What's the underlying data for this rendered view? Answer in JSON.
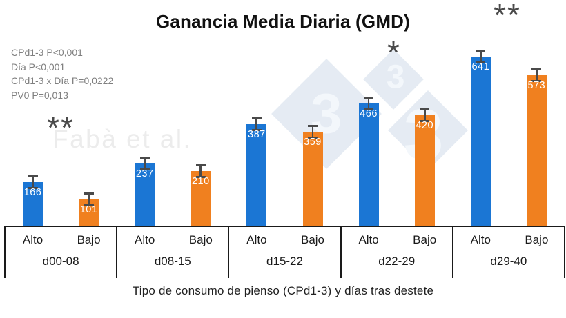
{
  "title": "Ganancia Media Diaria (GMD)",
  "stats_lines": [
    "CPd1-3 P<0,001",
    "Día P<0,001",
    "CPd1-3 x Día P=0,0222",
    "PV0 P=0,013"
  ],
  "watermark": {
    "author": "Fabà et al.",
    "logo_digits": [
      "3",
      "3",
      "3"
    ]
  },
  "chart_data": {
    "type": "bar",
    "title": "Ganancia Media Diaria (GMD)",
    "xlabel": "Tipo de consumo de pienso (CPd1-3) y días tras destete",
    "ylabel": "",
    "categories": [
      "d00-08",
      "d08-15",
      "d15-22",
      "d22-29",
      "d29-40"
    ],
    "subcategory_labels": [
      "Alto",
      "Bajo"
    ],
    "series": [
      {
        "name": "Alto",
        "color": "#1B76D4",
        "values": [
          166,
          237,
          387,
          466,
          641
        ]
      },
      {
        "name": "Bajo",
        "color": "#F0801F",
        "values": [
          101,
          210,
          359,
          420,
          573
        ]
      }
    ],
    "error_bars_shown": true,
    "significance_marks": [
      {
        "category": "d00-08",
        "label": "**"
      },
      {
        "category": "d22-29",
        "label": "*"
      },
      {
        "category": "d29-40",
        "label": "**"
      }
    ],
    "ylim": [
      0,
      700
    ],
    "grid": false,
    "legend": "none"
  },
  "colors": {
    "alto_bar": "#1B76D4",
    "bajo_bar": "#F0801F",
    "axis_line": "#1a1a1a",
    "stats_text": "#7f7f7f",
    "asterisk": "#4a4a4a",
    "value_label": "#ffffff",
    "watermark_diamond": "#E5EBF3",
    "watermark_digit": "#F3F7FB",
    "watermark_author": "#ececec"
  }
}
